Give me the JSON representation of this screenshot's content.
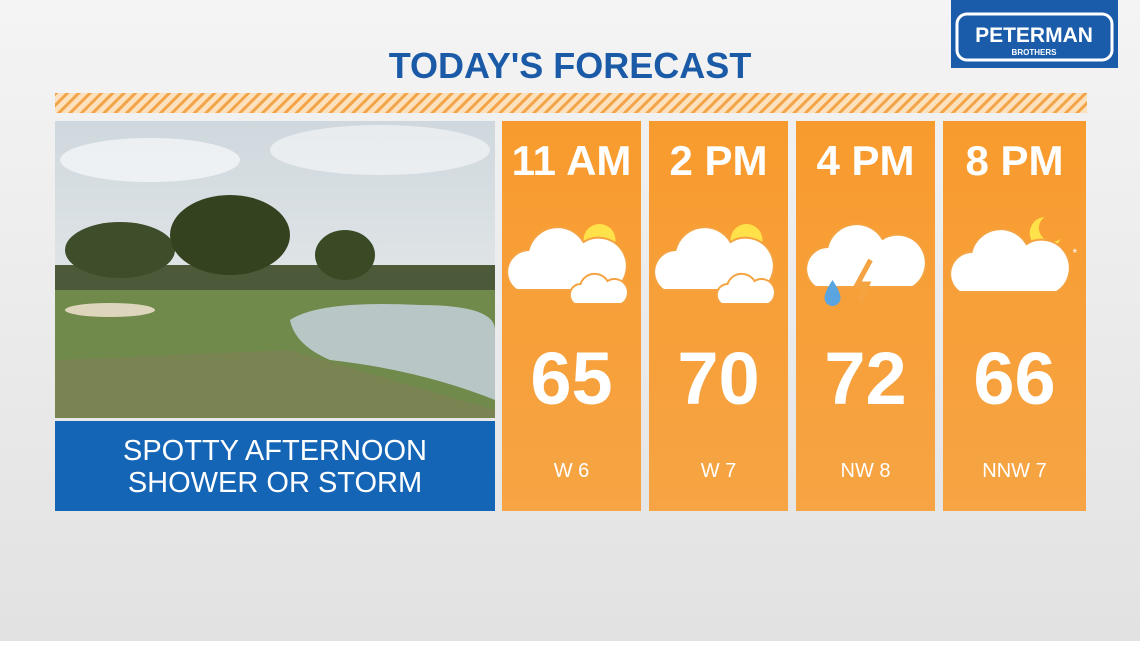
{
  "title": "TODAY'S FORECAST",
  "logo": {
    "name": "PETERMAN",
    "sub": "BROTHERS"
  },
  "caption": [
    "SPOTTY AFTERNOON",
    "SHOWER OR STORM"
  ],
  "forecast": [
    {
      "time": "11 AM",
      "temp": 65,
      "wind": "W 6"
    },
    {
      "time": "2 PM",
      "temp": 70,
      "wind": "W 7"
    },
    {
      "time": "4 PM",
      "temp": 72,
      "wind": "NW 8"
    },
    {
      "time": "8 PM",
      "temp": 66,
      "wind": "NNW 7"
    }
  ]
}
